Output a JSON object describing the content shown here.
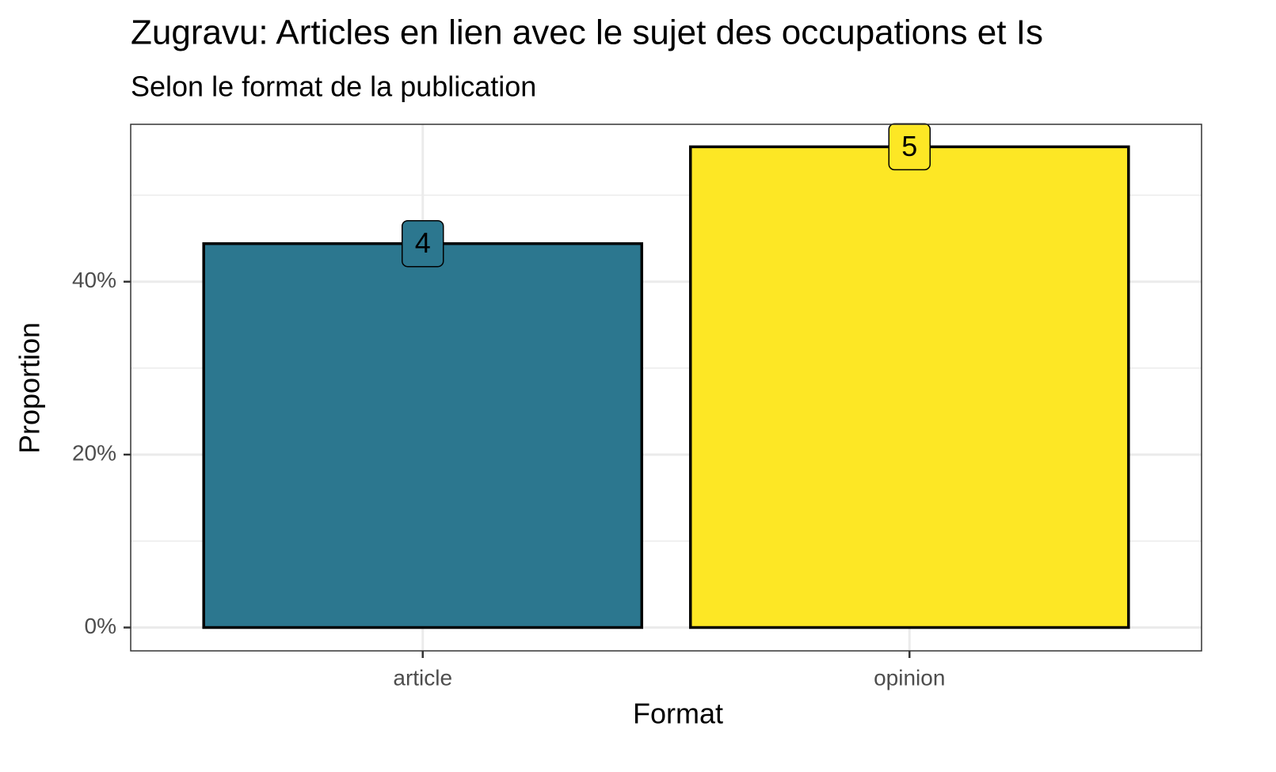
{
  "chart_data": {
    "type": "bar",
    "title": "Zugravu: Articles en lien avec le sujet des occupations et Is",
    "subtitle": "Selon le format de la publication",
    "x_label": "Format",
    "y_label": "Proportion",
    "categories": [
      "article",
      "opinion"
    ],
    "values": [
      44.4,
      55.6
    ],
    "counts": [
      4,
      5
    ],
    "colors": [
      "#2c778f",
      "#fde725"
    ],
    "ylim": [
      -2.7,
      58.2
    ],
    "yticks": [
      {
        "value": 0,
        "label": "0%"
      },
      {
        "value": 20,
        "label": "20%"
      },
      {
        "value": 40,
        "label": "40%"
      }
    ],
    "minor_yticks": [
      10,
      30,
      50
    ],
    "grid": true
  }
}
